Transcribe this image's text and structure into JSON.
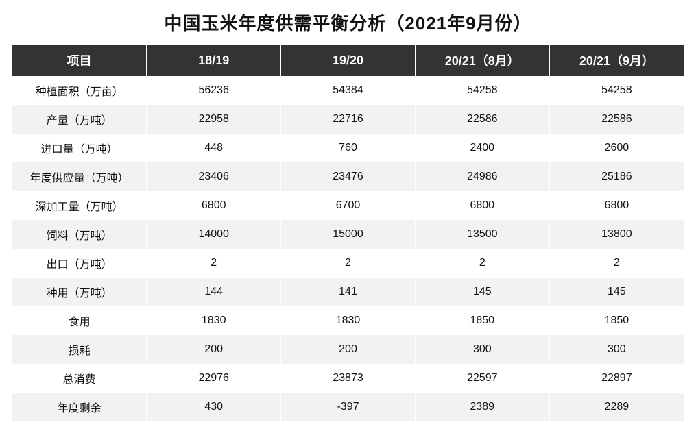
{
  "title": "中国玉米年度供需平衡分析（2021年9月份）",
  "table": {
    "type": "table",
    "header_bg": "#333333",
    "header_fg": "#ffffff",
    "row_odd_bg": "#ffffff",
    "row_even_bg": "#f2f2f2",
    "cell_border": "#ffffff",
    "title_fontsize": 26,
    "header_fontsize": 18,
    "cell_fontsize": 16,
    "columns": [
      "项目",
      "18/19",
      "19/20",
      "20/21（8月）",
      "20/21（9月）"
    ],
    "column_widths_pct": [
      20,
      20,
      20,
      20,
      20
    ],
    "rows": [
      [
        "种植面积（万亩）",
        "56236",
        "54384",
        "54258",
        "54258"
      ],
      [
        "产量（万吨）",
        "22958",
        "22716",
        "22586",
        "22586"
      ],
      [
        "进口量（万吨）",
        "448",
        "760",
        "2400",
        "2600"
      ],
      [
        "年度供应量（万吨）",
        "23406",
        "23476",
        "24986",
        "25186"
      ],
      [
        "深加工量（万吨）",
        "6800",
        "6700",
        "6800",
        "6800"
      ],
      [
        "饲料（万吨）",
        "14000",
        "15000",
        "13500",
        "13800"
      ],
      [
        "出口（万吨）",
        "2",
        "2",
        "2",
        "2"
      ],
      [
        "种用（万吨）",
        "144",
        "141",
        "145",
        "145"
      ],
      [
        "食用",
        "1830",
        "1830",
        "1850",
        "1850"
      ],
      [
        "损耗",
        "200",
        "200",
        "300",
        "300"
      ],
      [
        "总消费",
        "22976",
        "23873",
        "22597",
        "22897"
      ],
      [
        "年度剩余",
        "430",
        "-397",
        "2389",
        "2289"
      ]
    ]
  }
}
